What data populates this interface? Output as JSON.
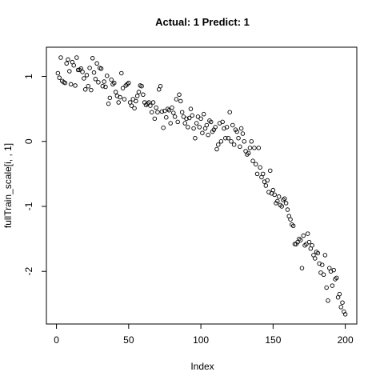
{
  "chart_data": {
    "type": "scatter",
    "title": "Actual: 1 Predict: 1",
    "x_label": "Index",
    "y_label": "fullTrain_scale[i, , 1]",
    "xlim": [
      -6.96,
      207.96
    ],
    "ylim": [
      -2.81,
      1.45
    ],
    "xticks": [
      0,
      50,
      100,
      150,
      200
    ],
    "yticks": [
      -2,
      -1,
      0,
      1
    ],
    "color": "#000000",
    "grid": false,
    "x": [
      1,
      2,
      3,
      4,
      5,
      6,
      7,
      8,
      9,
      10,
      11,
      12,
      13,
      14,
      15,
      16,
      17,
      18,
      19,
      20,
      21,
      22,
      23,
      24,
      25,
      26,
      27,
      28,
      29,
      30,
      31,
      32,
      33,
      34,
      35,
      36,
      37,
      38,
      39,
      40,
      41,
      42,
      43,
      44,
      45,
      46,
      47,
      48,
      49,
      50,
      51,
      52,
      53,
      54,
      55,
      56,
      57,
      58,
      59,
      60,
      61,
      62,
      63,
      64,
      65,
      66,
      67,
      68,
      69,
      70,
      71,
      72,
      73,
      74,
      75,
      76,
      77,
      78,
      79,
      80,
      81,
      82,
      83,
      84,
      85,
      86,
      87,
      88,
      89,
      90,
      91,
      92,
      93,
      94,
      95,
      96,
      97,
      98,
      99,
      100,
      101,
      102,
      103,
      104,
      105,
      106,
      107,
      108,
      109,
      110,
      111,
      112,
      113,
      114,
      115,
      116,
      117,
      118,
      119,
      120,
      121,
      122,
      123,
      124,
      125,
      126,
      127,
      128,
      129,
      130,
      131,
      132,
      133,
      134,
      135,
      136,
      137,
      138,
      139,
      140,
      141,
      142,
      143,
      144,
      145,
      146,
      147,
      148,
      149,
      150,
      151,
      152,
      153,
      154,
      155,
      156,
      157,
      158,
      159,
      160,
      161,
      162,
      163,
      164,
      165,
      166,
      167,
      168,
      169,
      170,
      171,
      172,
      173,
      174,
      175,
      176,
      177,
      178,
      179,
      180,
      181,
      182,
      183,
      184,
      185,
      186,
      187,
      188,
      189,
      190,
      191,
      192,
      193,
      194,
      195,
      196,
      197,
      198,
      199,
      200
    ],
    "values": [
      1.05,
      0.98,
      1.29,
      0.93,
      0.91,
      0.9,
      1.2,
      1.26,
      1.08,
      0.88,
      1.22,
      1.17,
      0.86,
      1.29,
      1.1,
      1.1,
      1.12,
      1.07,
      0.97,
      0.8,
      1.02,
      0.85,
      1.13,
      0.79,
      1.28,
      1.06,
      0.96,
      1.2,
      0.91,
      1.13,
      1.12,
      0.85,
      0.92,
      0.84,
      1.01,
      0.58,
      0.67,
      0.95,
      0.88,
      0.9,
      0.76,
      0.7,
      0.6,
      0.68,
      1.05,
      0.82,
      0.65,
      0.86,
      0.88,
      0.9,
      0.6,
      0.55,
      0.65,
      0.51,
      0.62,
      0.7,
      0.76,
      0.86,
      0.85,
      0.72,
      0.6,
      0.56,
      0.58,
      0.6,
      0.55,
      0.45,
      0.6,
      0.35,
      0.52,
      0.45,
      0.8,
      0.85,
      0.46,
      0.21,
      0.47,
      0.37,
      0.5,
      0.48,
      0.28,
      0.52,
      0.44,
      0.38,
      0.65,
      0.3,
      0.72,
      0.62,
      0.45,
      0.38,
      0.28,
      0.35,
      0.22,
      0.36,
      0.5,
      0.4,
      0.2,
      0.05,
      0.28,
      0.38,
      0.22,
      0.35,
      0.13,
      0.42,
      0.2,
      0.25,
      0.1,
      0.32,
      0.3,
      0.15,
      0.18,
      0.22,
      -0.12,
      -0.05,
      0.28,
      0.0,
      0.3,
      0.2,
      0.05,
      0.22,
      0.05,
      0.45,
      0.0,
      0.25,
      -0.05,
      0.18,
      0.15,
      0.05,
      -0.08,
      0.2,
      0.12,
      0.0,
      -0.15,
      -0.2,
      -0.18,
      -0.1,
      0.0,
      -0.3,
      -0.1,
      -0.35,
      -0.5,
      -0.1,
      -0.4,
      -0.55,
      -0.5,
      -0.62,
      -0.68,
      -0.6,
      -0.78,
      -0.45,
      -0.8,
      -0.75,
      -0.82,
      -0.95,
      -0.92,
      -0.85,
      -0.98,
      -1.0,
      -0.9,
      -0.88,
      -0.95,
      -1.05,
      -1.15,
      -1.2,
      -1.28,
      -1.3,
      -1.58,
      -1.58,
      -1.55,
      -1.5,
      -1.52,
      -1.95,
      -1.45,
      -1.6,
      -1.58,
      -1.42,
      -1.55,
      -1.65,
      -1.6,
      -1.75,
      -1.8,
      -1.7,
      -1.72,
      -1.88,
      -2.02,
      -1.9,
      -2.05,
      -1.75,
      -2.25,
      -2.45,
      -1.95,
      -2.0,
      -2.22,
      -1.98,
      -2.12,
      -2.1,
      -2.4,
      -2.35,
      -2.55,
      -2.48,
      -2.62,
      -2.66
    ]
  }
}
